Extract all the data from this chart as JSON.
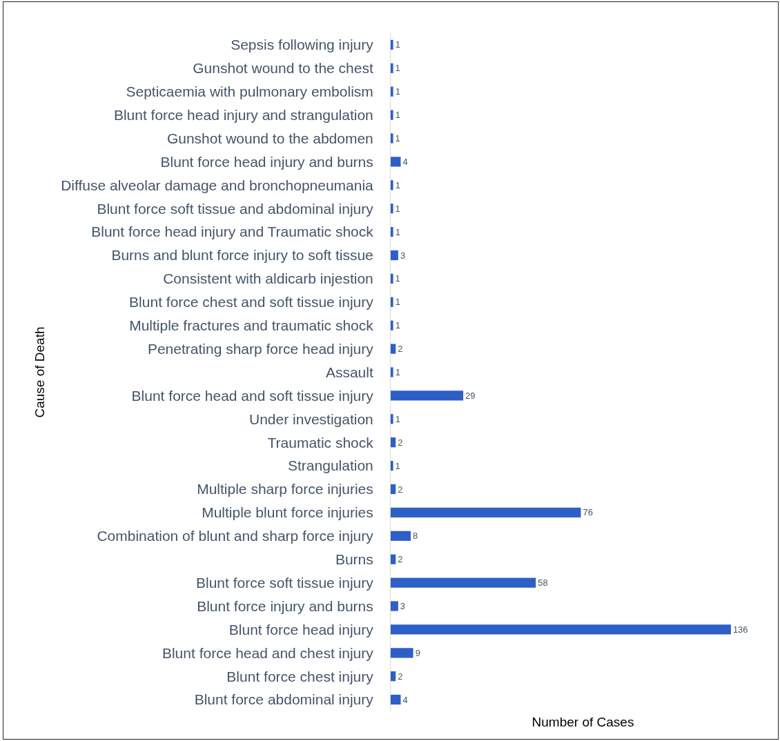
{
  "chart_data": {
    "type": "bar",
    "orientation": "horizontal",
    "xlabel": "Number of Cases",
    "ylabel": "Cause of Death",
    "categories": [
      "Sepsis following injury",
      "Gunshot wound to the chest",
      "Septicaemia with pulmonary embolism",
      "Blunt force head injury and strangulation",
      "Gunshot wound to the abdomen",
      "Blunt force head injury and burns",
      "Diffuse alveolar damage and bronchopneumania",
      "Blunt force soft tissue and abdominal injury",
      "Blunt force head injury and Traumatic shock",
      "Burns and blunt force injury to soft tissue",
      "Consistent with aldicarb injestion",
      "Blunt force chest and soft tissue injury",
      "Multiple fractures and traumatic shock",
      "Penetrating sharp force head injury",
      "Assault",
      "Blunt force head and soft tissue injury",
      "Under investigation",
      "Traumatic shock",
      "Strangulation",
      "Multiple sharp force injuries",
      "Multiple blunt force injuries",
      "Combination of blunt and sharp force injury",
      "Burns",
      "Blunt force soft tissue injury",
      "Blunt force injury and burns",
      "Blunt force head injury",
      "Blunt force head and chest injury",
      "Blunt force chest injury",
      "Blunt force abdominal injury"
    ],
    "values": [
      1,
      1,
      1,
      1,
      1,
      4,
      1,
      1,
      1,
      3,
      1,
      1,
      1,
      2,
      1,
      29,
      1,
      2,
      1,
      2,
      76,
      8,
      2,
      58,
      3,
      136,
      9,
      2,
      4
    ],
    "color": "#2e5fc7",
    "data_labels": true,
    "tick_labels": "y"
  }
}
